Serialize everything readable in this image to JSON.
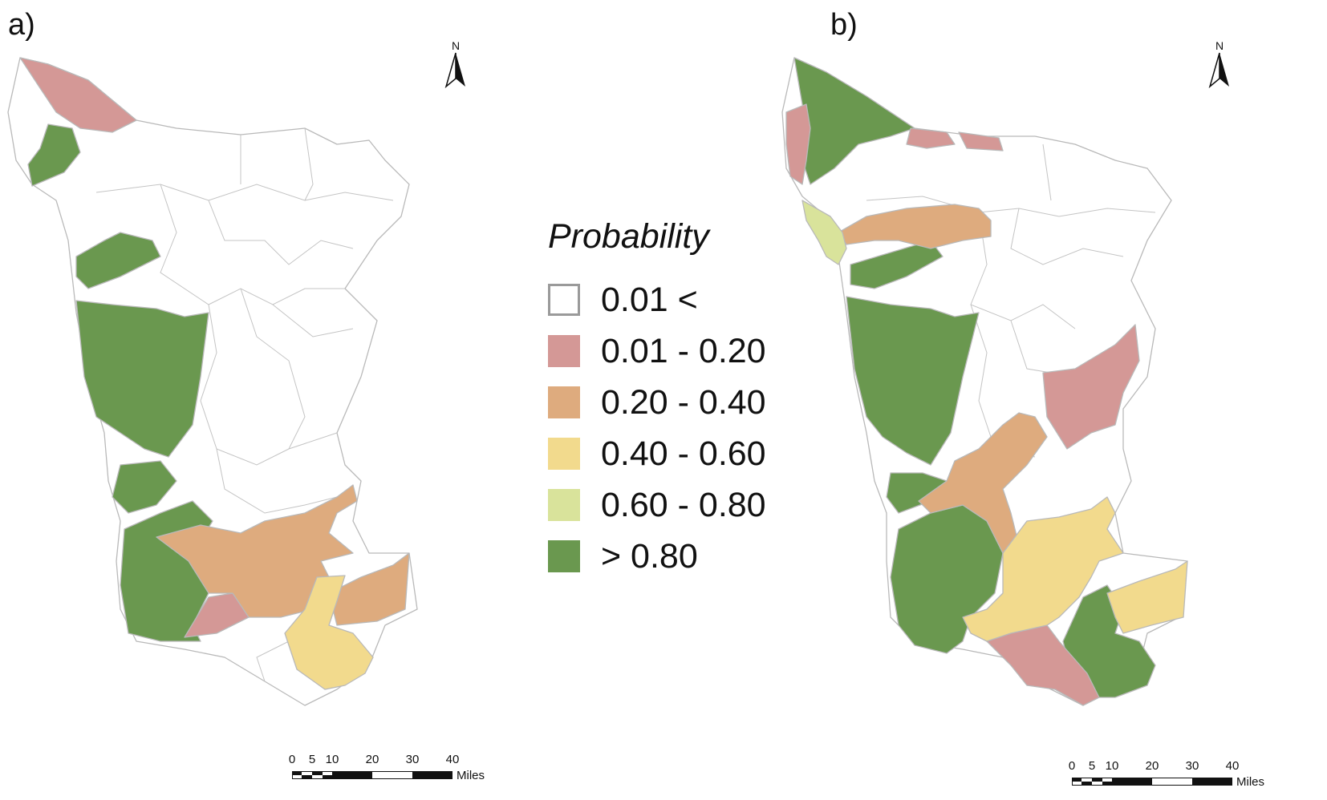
{
  "panels": [
    {
      "label": "a)"
    },
    {
      "label": "b)"
    }
  ],
  "north_arrow": {
    "letter": "N",
    "icon": "north-arrow-icon"
  },
  "scale_bar": {
    "ticks": [
      "0",
      "5",
      "10",
      "20",
      "30",
      "40"
    ],
    "unit": "Miles"
  },
  "legend": {
    "title": "Probability",
    "items": [
      {
        "label": "0.01 <",
        "color": "#ffffff",
        "border": "#9a9a9a"
      },
      {
        "label": "0.01 - 0.20",
        "color": "#d49896"
      },
      {
        "label": "0.20 - 0.40",
        "color": "#deab7e"
      },
      {
        "label": "0.40 - 0.60",
        "color": "#f2da8d"
      },
      {
        "label": "0.60 - 0.80",
        "color": "#d9e39b"
      },
      {
        "label": "> 0.80",
        "color": "#6a984f"
      }
    ]
  },
  "colors": {
    "none": "#ffffff",
    "p01_20": "#d49896",
    "p20_40": "#deab7e",
    "p40_60": "#f2da8d",
    "p60_80": "#d9e39b",
    "p80": "#6a984f",
    "boundary": "#b9b9b9"
  }
}
